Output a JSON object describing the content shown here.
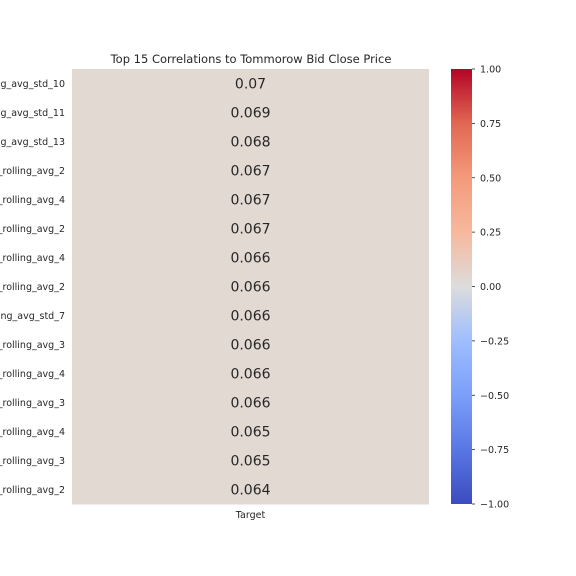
{
  "chart_data": {
    "type": "heatmap",
    "title": "Top 15 Correlations to Tommorow Bid Close Price",
    "x_categories": [
      "Target"
    ],
    "y_categories": [
      "g_avg_std_10",
      "g_avg_std_11",
      "g_avg_std_13",
      "_rolling_avg_2",
      "_rolling_avg_4",
      "_rolling_avg_2",
      "_rolling_avg_4",
      "_rolling_avg_2",
      "ing_avg_std_7",
      "_rolling_avg_3",
      "_rolling_avg_4",
      "_rolling_avg_3",
      "_rolling_avg_4",
      "_rolling_avg_3",
      "_rolling_avg_2"
    ],
    "values": [
      0.07,
      0.069,
      0.068,
      0.067,
      0.067,
      0.067,
      0.066,
      0.066,
      0.066,
      0.066,
      0.066,
      0.066,
      0.065,
      0.065,
      0.064
    ],
    "value_labels": [
      "0.07",
      "0.069",
      "0.068",
      "0.067",
      "0.067",
      "0.067",
      "0.066",
      "0.066",
      "0.066",
      "0.066",
      "0.066",
      "0.066",
      "0.065",
      "0.065",
      "0.064"
    ],
    "colormap": "coolwarm",
    "vmin": -1.0,
    "vmax": 1.0,
    "colorbar_ticks": [
      1.0,
      0.75,
      0.5,
      0.25,
      0.0,
      -0.25,
      -0.5,
      -0.75,
      -1.0
    ],
    "colorbar_tick_labels": [
      "1.00",
      "0.75",
      "0.50",
      "0.25",
      "0.00",
      "−0.25",
      "−0.50",
      "−0.75",
      "−1.00"
    ],
    "cell_color": "#e3d9d3",
    "grid": false
  }
}
